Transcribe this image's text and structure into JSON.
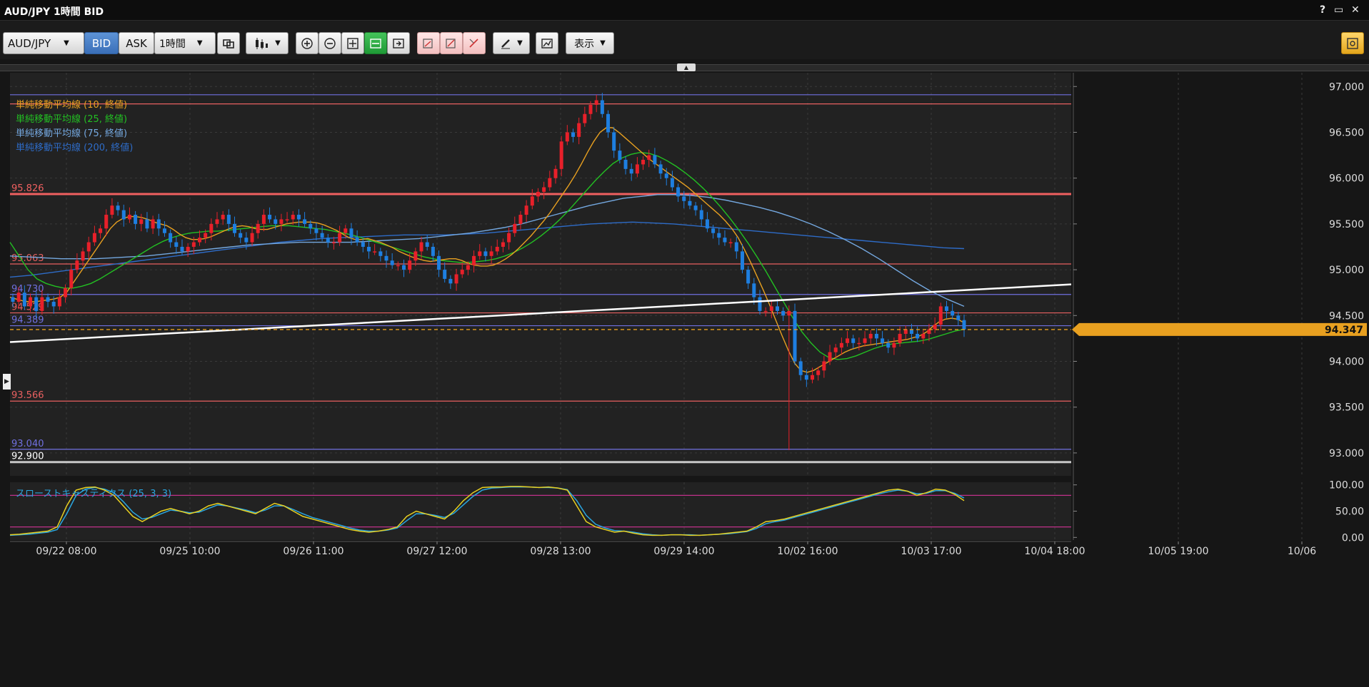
{
  "window": {
    "title": "AUD/JPY 1時間 BID",
    "help": "?",
    "maximize": "▭",
    "close": "✕"
  },
  "toolbar": {
    "symbol": "AUD/JPY",
    "bid_label": "BID",
    "ask_label": "ASK",
    "timeframe": "1時間",
    "display_label": "表示"
  },
  "colors": {
    "background": "#222222",
    "bull": "#e8202a",
    "bear": "#1e7fe0",
    "ma10": "#e8a020",
    "ma25": "#22c022",
    "ma75": "#74a8e0",
    "ma200": "#2e6cc8",
    "stoch_k": "#e8d020",
    "stoch_d": "#2aa6e0"
  },
  "chart_data": {
    "type": "candlestick",
    "ylim": [
      92.75,
      97.15
    ],
    "y_ticks": [
      "97.000",
      "96.500",
      "96.000",
      "95.500",
      "95.000",
      "94.500",
      "94.000",
      "93.500",
      "93.000"
    ],
    "x_ticks": [
      "09/22 08:00",
      "09/25 10:00",
      "09/26 11:00",
      "09/27 12:00",
      "09/28 13:00",
      "09/29 14:00",
      "10/02 16:00",
      "10/03 17:00",
      "10/04 18:00",
      "10/05 19:00",
      "10/06"
    ],
    "legend": [
      {
        "label": "単純移動平均線 (10, 終値)",
        "color": "#e8a020"
      },
      {
        "label": "単純移動平均線 (25, 終値)",
        "color": "#22c022"
      },
      {
        "label": "単純移動平均線 (75, 終値)",
        "color": "#74a8e0"
      },
      {
        "label": "単純移動平均線 (200, 終値)",
        "color": "#2e6cc8"
      }
    ],
    "hlines": [
      {
        "value": 96.91,
        "color": "#7070e0",
        "label": ""
      },
      {
        "value": 96.81,
        "color": "#e86060",
        "label": ""
      },
      {
        "value": 95.826,
        "color": "#f06060",
        "label": "95.826",
        "thick": true
      },
      {
        "value": 95.063,
        "color": "#e86060",
        "label": "95.063"
      },
      {
        "value": 94.73,
        "color": "#7070e0",
        "label": "94.730"
      },
      {
        "value": 94.529,
        "color": "#e86060",
        "label": "94.529"
      },
      {
        "value": 94.389,
        "color": "#7070e0",
        "label": "94.389"
      },
      {
        "value": 93.566,
        "color": "#e86060",
        "label": "93.566"
      },
      {
        "value": 93.04,
        "color": "#7070e0",
        "label": "93.040"
      },
      {
        "value": 92.9,
        "color": "#c8c8c8",
        "label": "92.900",
        "thick": true
      }
    ],
    "current_price": {
      "value": 94.347,
      "label": "94.347"
    },
    "trendline": {
      "from": {
        "x": 0,
        "y": 94.21
      },
      "to": {
        "x": 1,
        "y": 94.84
      }
    },
    "closes": [
      94.65,
      94.75,
      94.6,
      94.7,
      94.55,
      94.7,
      94.65,
      94.6,
      94.7,
      94.8,
      95.0,
      95.1,
      95.2,
      95.3,
      95.4,
      95.45,
      95.6,
      95.7,
      95.65,
      95.55,
      95.6,
      95.5,
      95.55,
      95.45,
      95.55,
      95.45,
      95.4,
      95.3,
      95.25,
      95.2,
      95.25,
      95.3,
      95.35,
      95.4,
      95.5,
      95.55,
      95.6,
      95.5,
      95.4,
      95.35,
      95.3,
      95.4,
      95.5,
      95.6,
      95.55,
      95.5,
      95.55,
      95.55,
      95.6,
      95.55,
      95.5,
      95.45,
      95.4,
      95.35,
      95.3,
      95.3,
      95.4,
      95.45,
      95.35,
      95.3,
      95.25,
      95.2,
      95.2,
      95.15,
      95.1,
      95.05,
      95.05,
      95.0,
      95.1,
      95.2,
      95.3,
      95.25,
      95.15,
      95.0,
      94.9,
      94.85,
      94.95,
      95.0,
      95.05,
      95.15,
      95.2,
      95.15,
      95.2,
      95.25,
      95.3,
      95.4,
      95.5,
      95.6,
      95.7,
      95.8,
      95.85,
      95.9,
      96.0,
      96.1,
      96.4,
      96.5,
      96.45,
      96.6,
      96.7,
      96.8,
      96.85,
      96.7,
      96.5,
      96.3,
      96.2,
      96.1,
      96.05,
      96.15,
      96.2,
      96.25,
      96.15,
      96.05,
      96.0,
      95.9,
      95.8,
      95.75,
      95.7,
      95.65,
      95.55,
      95.45,
      95.4,
      95.35,
      95.3,
      95.3,
      95.2,
      95.0,
      94.85,
      94.7,
      94.55,
      94.55,
      94.6,
      94.55,
      94.5,
      94.55,
      94.0,
      93.85,
      93.8,
      93.85,
      93.9,
      94.0,
      94.1,
      94.15,
      94.2,
      94.25,
      94.2,
      94.2,
      94.25,
      94.3,
      94.25,
      94.2,
      94.15,
      94.2,
      94.3,
      94.35,
      94.3,
      94.25,
      94.3,
      94.35,
      94.4,
      94.6,
      94.55,
      94.5,
      94.45,
      94.347
    ],
    "ma10": [
      94.7,
      94.68,
      94.66,
      94.65,
      94.65,
      94.66,
      94.67,
      94.68,
      94.7,
      94.75,
      94.85,
      94.95,
      95.05,
      95.15,
      95.25,
      95.35,
      95.45,
      95.52,
      95.56,
      95.58,
      95.58,
      95.57,
      95.55,
      95.52,
      95.5,
      95.48,
      95.44,
      95.39,
      95.35,
      95.33,
      95.33,
      95.34,
      95.36,
      95.39,
      95.42,
      95.45,
      95.47,
      95.48,
      95.47,
      95.45,
      95.44,
      95.44,
      95.46,
      95.48,
      95.5,
      95.51,
      95.52,
      95.52,
      95.52,
      95.51,
      95.49,
      95.46,
      95.43,
      95.39,
      95.35,
      95.33,
      95.33,
      95.34,
      95.32,
      95.3,
      95.27,
      95.24,
      95.2,
      95.17,
      95.14,
      95.12,
      95.1,
      95.09,
      95.1,
      95.11,
      95.12,
      95.12,
      95.1,
      95.07,
      95.05,
      95.04,
      95.04,
      95.05,
      95.08,
      95.12,
      95.17,
      95.23,
      95.3,
      95.37,
      95.45,
      95.53,
      95.62,
      95.72,
      95.82,
      95.92,
      96.03,
      96.15,
      96.28,
      96.4,
      96.5,
      96.55,
      96.55,
      96.5,
      96.44,
      96.38,
      96.32,
      96.26,
      96.2,
      96.15,
      96.1,
      96.05,
      96.0,
      95.95,
      95.9,
      95.84,
      95.78,
      95.72,
      95.66,
      95.6,
      95.53,
      95.45,
      95.35,
      95.22,
      95.08,
      94.93,
      94.78,
      94.62,
      94.45,
      94.28,
      94.12,
      93.98,
      93.9,
      93.88,
      93.9,
      93.94,
      93.98,
      94.02,
      94.06,
      94.1,
      94.13,
      94.15,
      94.17,
      94.18,
      94.19,
      94.2,
      94.21,
      94.22,
      94.23,
      94.24,
      94.26,
      94.28,
      94.32,
      94.38,
      94.43,
      94.46,
      94.47,
      94.46,
      94.42
    ],
    "ma25": [
      95.3,
      95.15,
      95.0,
      94.9,
      94.85,
      94.82,
      94.8,
      94.8,
      94.82,
      94.85,
      94.9,
      94.96,
      95.02,
      95.08,
      95.14,
      95.2,
      95.26,
      95.31,
      95.35,
      95.38,
      95.4,
      95.41,
      95.42,
      95.42,
      95.43,
      95.44,
      95.45,
      95.46,
      95.47,
      95.48,
      95.48,
      95.48,
      95.47,
      95.46,
      95.45,
      95.44,
      95.42,
      95.4,
      95.38,
      95.35,
      95.32,
      95.29,
      95.26,
      95.23,
      95.2,
      95.17,
      95.14,
      95.12,
      95.1,
      95.09,
      95.08,
      95.08,
      95.09,
      95.1,
      95.12,
      95.15,
      95.19,
      95.24,
      95.3,
      95.37,
      95.45,
      95.54,
      95.64,
      95.75,
      95.86,
      95.97,
      96.07,
      96.16,
      96.22,
      96.26,
      96.28,
      96.27,
      96.24,
      96.19,
      96.13,
      96.06,
      95.98,
      95.89,
      95.79,
      95.68,
      95.56,
      95.43,
      95.29,
      95.14,
      94.98,
      94.81,
      94.64,
      94.47,
      94.32,
      94.2,
      94.1,
      94.04,
      94.02,
      94.03,
      94.06,
      94.1,
      94.14,
      94.17,
      94.19,
      94.2,
      94.21,
      94.22,
      94.24,
      94.27,
      94.3,
      94.33,
      94.35
    ],
    "ma75": [
      95.15,
      95.14,
      95.13,
      95.12,
      95.12,
      95.12,
      95.13,
      95.14,
      95.15,
      95.17,
      95.19,
      95.21,
      95.23,
      95.25,
      95.27,
      95.28,
      95.29,
      95.3,
      95.3,
      95.3,
      95.3,
      95.31,
      95.32,
      95.33,
      95.34,
      95.36,
      95.38,
      95.4,
      95.43,
      95.46,
      95.5,
      95.55,
      95.6,
      95.65,
      95.7,
      95.74,
      95.78,
      95.8,
      95.82,
      95.82,
      95.81,
      95.79,
      95.76,
      95.72,
      95.68,
      95.63,
      95.57,
      95.5,
      95.42,
      95.33,
      95.23,
      95.12,
      95.0,
      94.88,
      94.77,
      94.68,
      94.6
    ],
    "ma200": [
      94.92,
      94.94,
      94.97,
      95.0,
      95.03,
      95.06,
      95.09,
      95.12,
      95.15,
      95.18,
      95.21,
      95.24,
      95.27,
      95.3,
      95.32,
      95.34,
      95.35,
      95.36,
      95.37,
      95.38,
      95.38,
      95.38,
      95.39,
      95.4,
      95.42,
      95.44,
      95.46,
      95.48,
      95.5,
      95.51,
      95.52,
      95.51,
      95.5,
      95.48,
      95.46,
      95.44,
      95.42,
      95.4,
      95.38,
      95.36,
      95.34,
      95.32,
      95.3,
      95.28,
      95.26,
      95.24,
      95.23
    ],
    "stochastic": {
      "label": "スローストキャスティクス (25, 3, 3)",
      "ylim": [
        -5,
        105
      ],
      "ticks": [
        "100.00",
        "50.00",
        "0.00"
      ],
      "levels": [
        80,
        20
      ],
      "k": [
        5,
        6,
        8,
        10,
        12,
        20,
        60,
        90,
        95,
        96,
        90,
        80,
        60,
        40,
        30,
        40,
        50,
        55,
        50,
        45,
        50,
        60,
        65,
        60,
        55,
        50,
        45,
        55,
        65,
        60,
        50,
        40,
        35,
        30,
        25,
        20,
        15,
        12,
        10,
        12,
        15,
        20,
        40,
        50,
        45,
        40,
        35,
        50,
        70,
        85,
        95,
        96,
        96,
        97,
        97,
        96,
        95,
        96,
        94,
        90,
        60,
        30,
        20,
        15,
        10,
        12,
        8,
        5,
        4,
        4,
        5,
        5,
        4,
        4,
        5,
        6,
        8,
        10,
        12,
        20,
        30,
        32,
        35,
        40,
        45,
        50,
        55,
        60,
        65,
        70,
        75,
        80,
        85,
        90,
        92,
        88,
        80,
        85,
        92,
        90,
        82,
        70
      ],
      "d": [
        4,
        5,
        6,
        8,
        10,
        15,
        45,
        80,
        92,
        95,
        92,
        85,
        68,
        48,
        35,
        38,
        45,
        52,
        50,
        47,
        48,
        55,
        62,
        60,
        56,
        52,
        47,
        52,
        60,
        60,
        53,
        45,
        38,
        33,
        28,
        23,
        18,
        14,
        12,
        12,
        14,
        18,
        32,
        45,
        45,
        42,
        38,
        46,
        62,
        78,
        90,
        94,
        95,
        96,
        96,
        96,
        95,
        95,
        94,
        91,
        70,
        42,
        25,
        18,
        13,
        12,
        10,
        7,
        5,
        4,
        5,
        5,
        5,
        4,
        5,
        6,
        7,
        9,
        11,
        17,
        26,
        30,
        33,
        38,
        43,
        48,
        53,
        58,
        63,
        68,
        73,
        78,
        83,
        87,
        90,
        88,
        83,
        84,
        89,
        89,
        84,
        75
      ]
    }
  }
}
